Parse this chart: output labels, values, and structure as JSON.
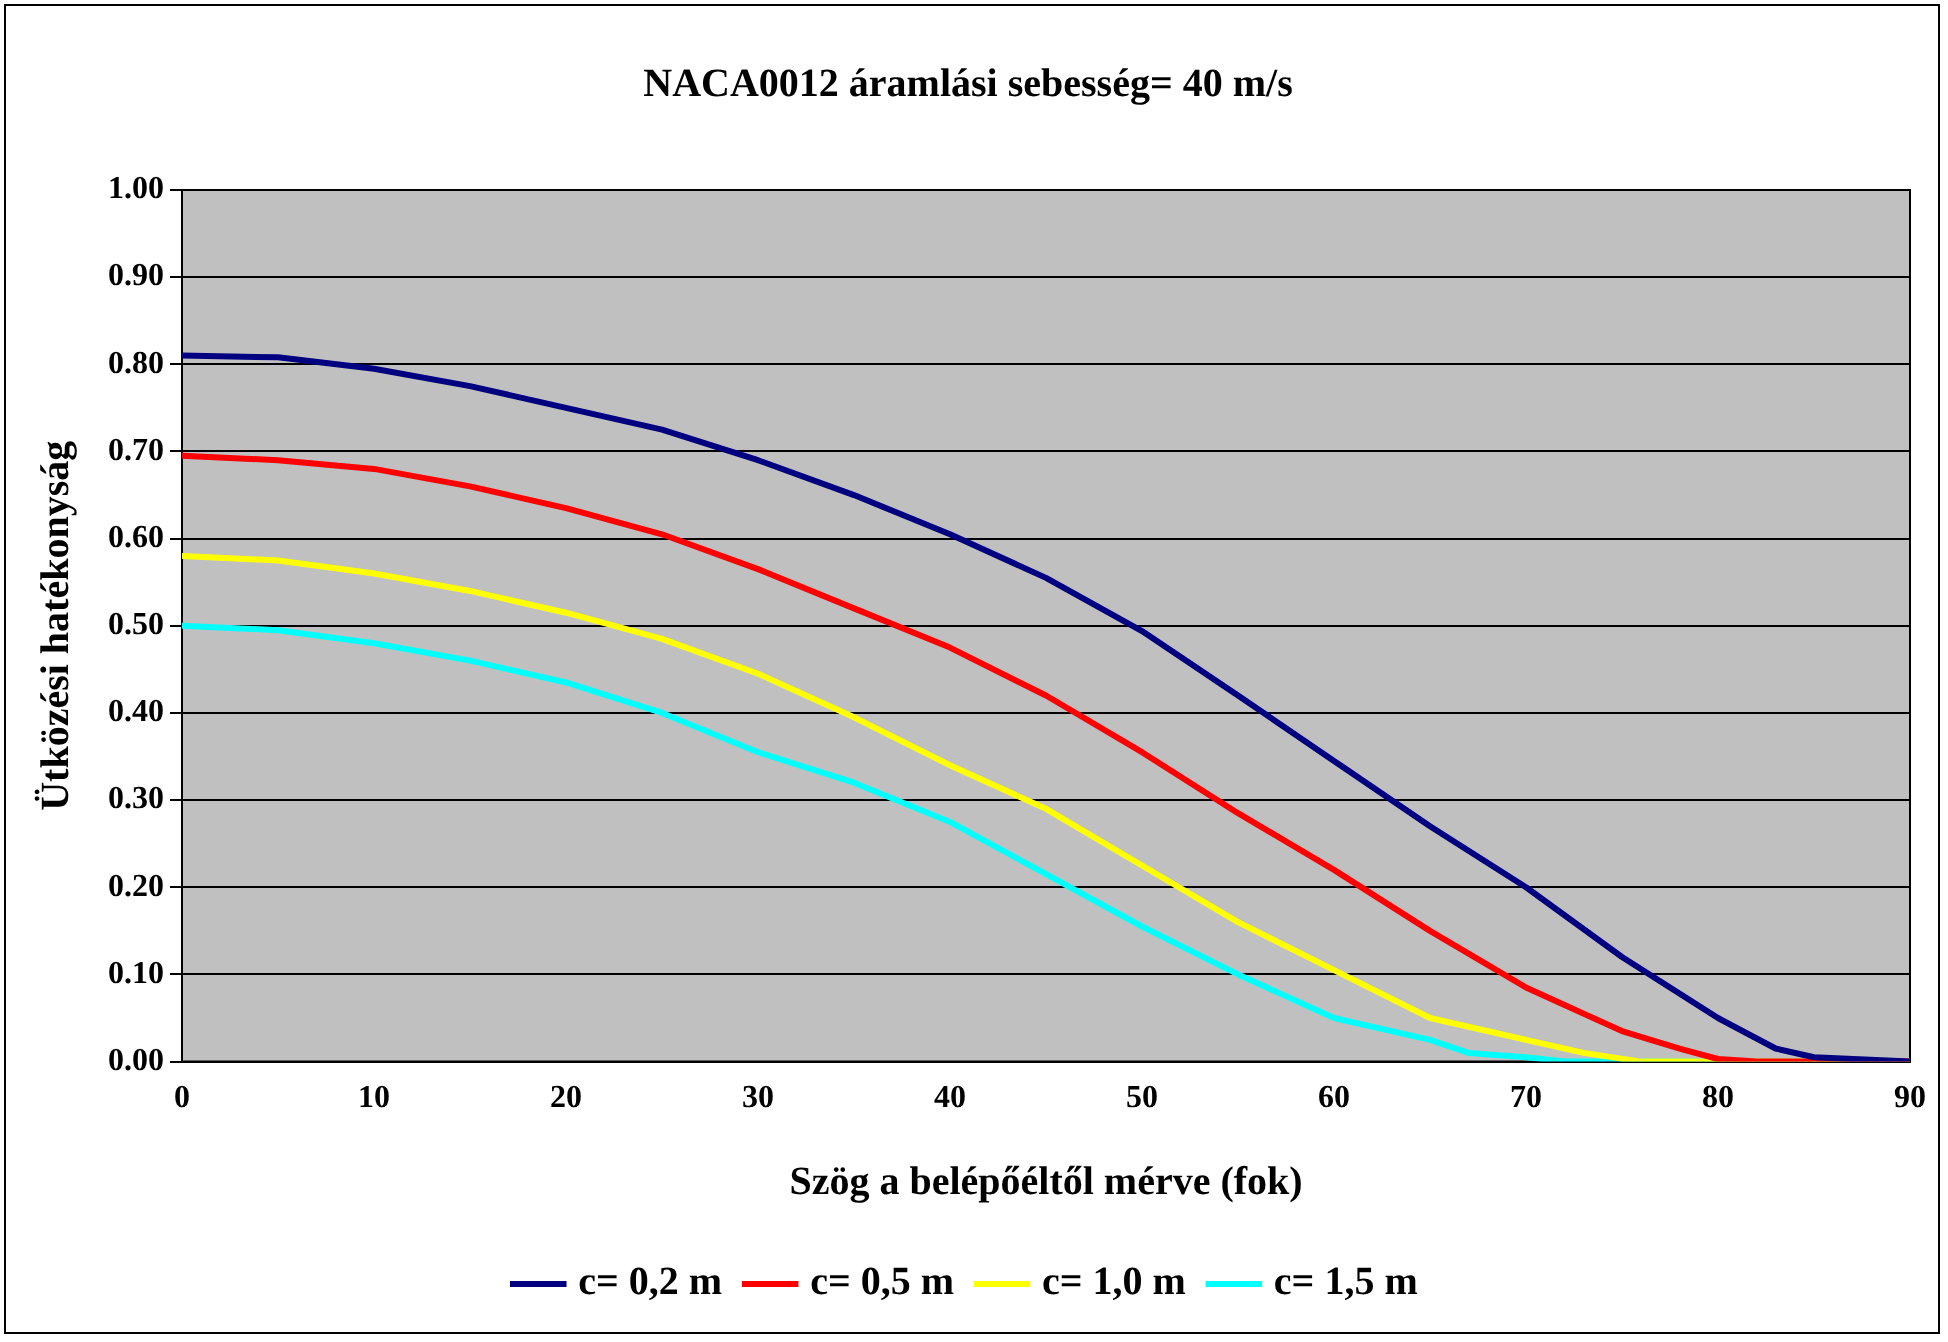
{
  "chart_data": {
    "type": "line",
    "title": "NACA0012 áramlási sebesség= 40 m/s",
    "xlabel": "Szög a belépőéltől mérve (fok)",
    "ylabel": "Ütközési hatékonyság",
    "xlim": [
      0,
      90
    ],
    "xticks": [
      0,
      10,
      20,
      30,
      40,
      50,
      60,
      70,
      80,
      90
    ],
    "ylim": [
      0,
      1
    ],
    "yticks": [
      {
        "value": 0,
        "label": "0.00"
      },
      {
        "value": 0.1,
        "label": "0.10"
      },
      {
        "value": 0.2,
        "label": "0.20"
      },
      {
        "value": 0.3,
        "label": "0.30"
      },
      {
        "value": 0.4,
        "label": "0.40"
      },
      {
        "value": 0.5,
        "label": "0.50"
      },
      {
        "value": 0.6,
        "label": "0.60"
      },
      {
        "value": 0.7,
        "label": "0.70"
      },
      {
        "value": 0.8,
        "label": "0.80"
      },
      {
        "value": 0.9,
        "label": "0.90"
      },
      {
        "value": 1,
        "label": "1.00"
      }
    ],
    "grid": "y",
    "legend": "bottom",
    "marker": "none",
    "line_style": "solid",
    "series": [
      {
        "name": "c= 0,2 m",
        "color": "#000080",
        "x": [
          0,
          5,
          10,
          15,
          20,
          25,
          30,
          35,
          40,
          45,
          50,
          55,
          60,
          65,
          70,
          75,
          80,
          83,
          85,
          90
        ],
        "values": [
          0.81,
          0.808,
          0.795,
          0.775,
          0.75,
          0.725,
          0.69,
          0.65,
          0.605,
          0.555,
          0.494,
          0.42,
          0.345,
          0.27,
          0.2,
          0.12,
          0.05,
          0.015,
          0.005,
          0
        ]
      },
      {
        "name": "c= 0,5 m",
        "color": "#ff0000",
        "x": [
          0,
          5,
          10,
          15,
          20,
          25,
          30,
          35,
          40,
          45,
          50,
          55,
          60,
          65,
          70,
          75,
          78,
          80,
          82,
          90
        ],
        "values": [
          0.695,
          0.69,
          0.68,
          0.66,
          0.635,
          0.605,
          0.565,
          0.52,
          0.475,
          0.42,
          0.355,
          0.285,
          0.22,
          0.15,
          0.085,
          0.035,
          0.015,
          0.003,
          0,
          0
        ]
      },
      {
        "name": "c= 1,0 m",
        "color": "#ffff00",
        "x": [
          0,
          5,
          10,
          15,
          20,
          25,
          30,
          35,
          40,
          45,
          50,
          55,
          60,
          65,
          70,
          73,
          76,
          90
        ],
        "values": [
          0.58,
          0.575,
          0.56,
          0.54,
          0.515,
          0.485,
          0.445,
          0.395,
          0.34,
          0.29,
          0.225,
          0.16,
          0.105,
          0.05,
          0.025,
          0.01,
          0,
          0
        ]
      },
      {
        "name": "c= 1,5 m",
        "color": "#00ffff",
        "x": [
          0,
          5,
          10,
          15,
          20,
          25,
          30,
          35,
          40,
          45,
          50,
          55,
          60,
          65,
          67,
          70,
          72,
          90
        ],
        "values": [
          0.5,
          0.495,
          0.48,
          0.46,
          0.435,
          0.4,
          0.355,
          0.32,
          0.275,
          0.215,
          0.155,
          0.1,
          0.05,
          0.025,
          0.01,
          0.005,
          0,
          0
        ]
      }
    ]
  }
}
